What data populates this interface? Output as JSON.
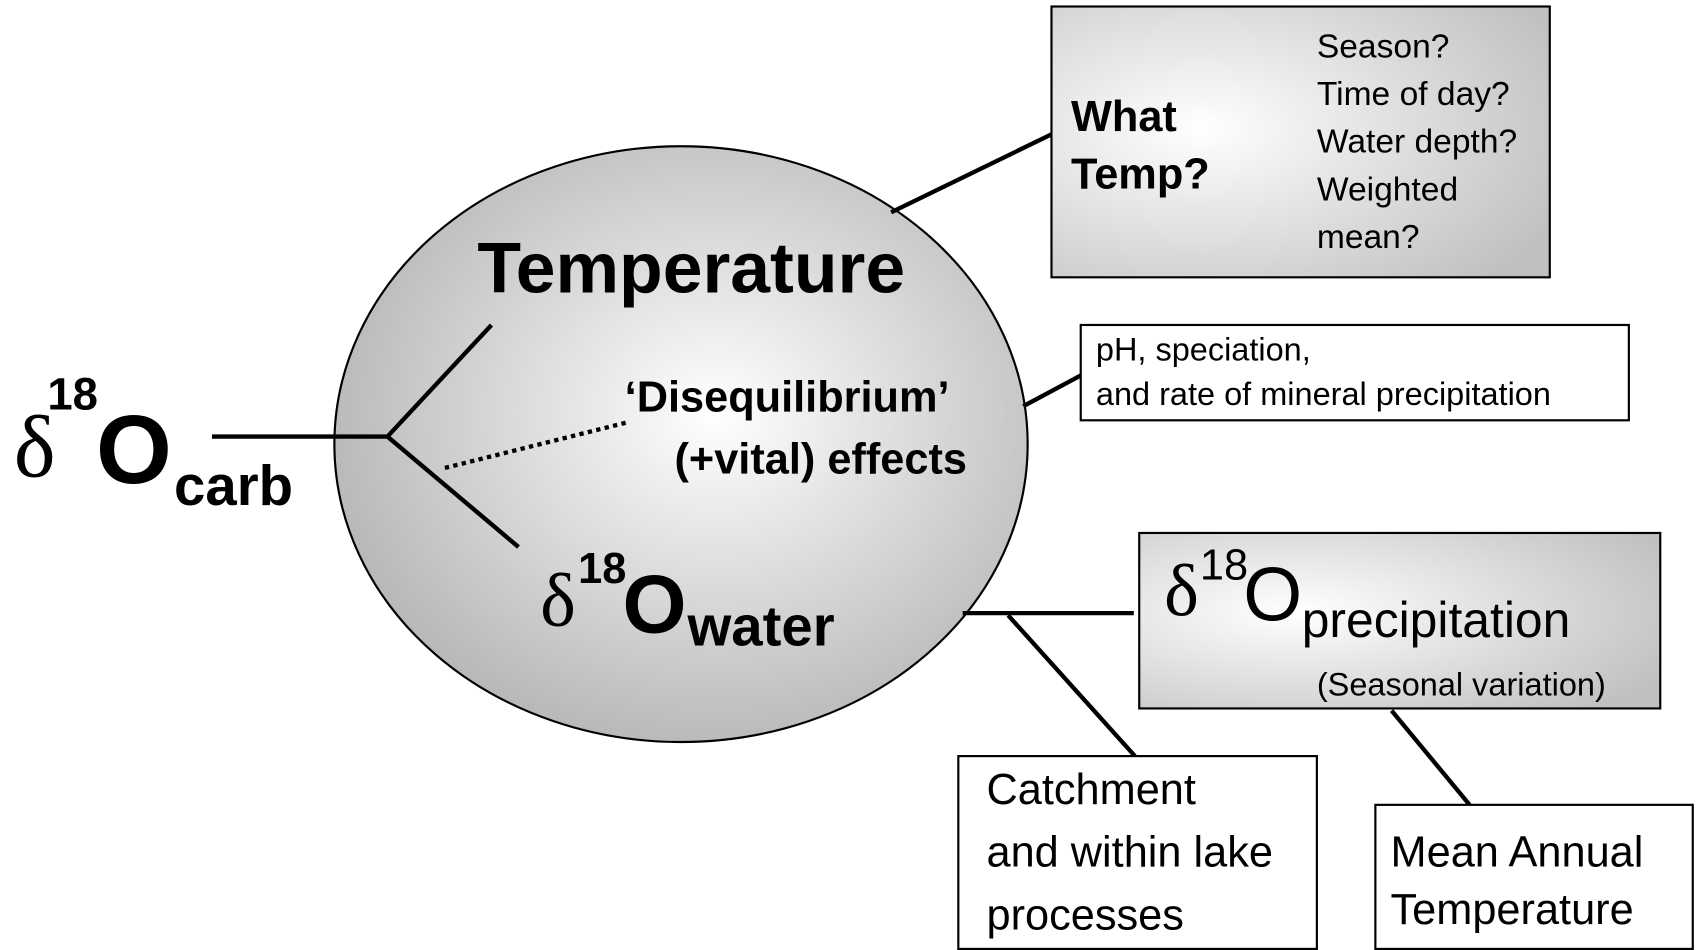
{
  "root": {
    "symbol": "δ",
    "superscript": "18",
    "element": "O",
    "subscript": "carb"
  },
  "ellipse": {
    "temperature": "Temperature",
    "disequilibrium": "‘Disequilibrium’",
    "effects": "(+vital) effects",
    "water": {
      "symbol": "δ",
      "superscript": "18",
      "element": "O",
      "subscript": "water"
    }
  },
  "what_temp": {
    "title_lines": [
      "What",
      "Temp?"
    ],
    "questions": [
      "Season?",
      "Time of day?",
      "Water depth?",
      "Weighted",
      "mean?"
    ]
  },
  "disequilibrium_note": {
    "lines": [
      "pH, speciation,",
      "and rate of mineral precipitation"
    ]
  },
  "precipitation": {
    "symbol": "δ",
    "superscript": "18",
    "element": "O",
    "subscript": "precipitation",
    "note": "(Seasonal variation)"
  },
  "catchment": {
    "lines": [
      "Catchment",
      "and within lake",
      "processes"
    ]
  },
  "mean_annual": {
    "lines": [
      "Mean Annual",
      "Temperature"
    ]
  }
}
